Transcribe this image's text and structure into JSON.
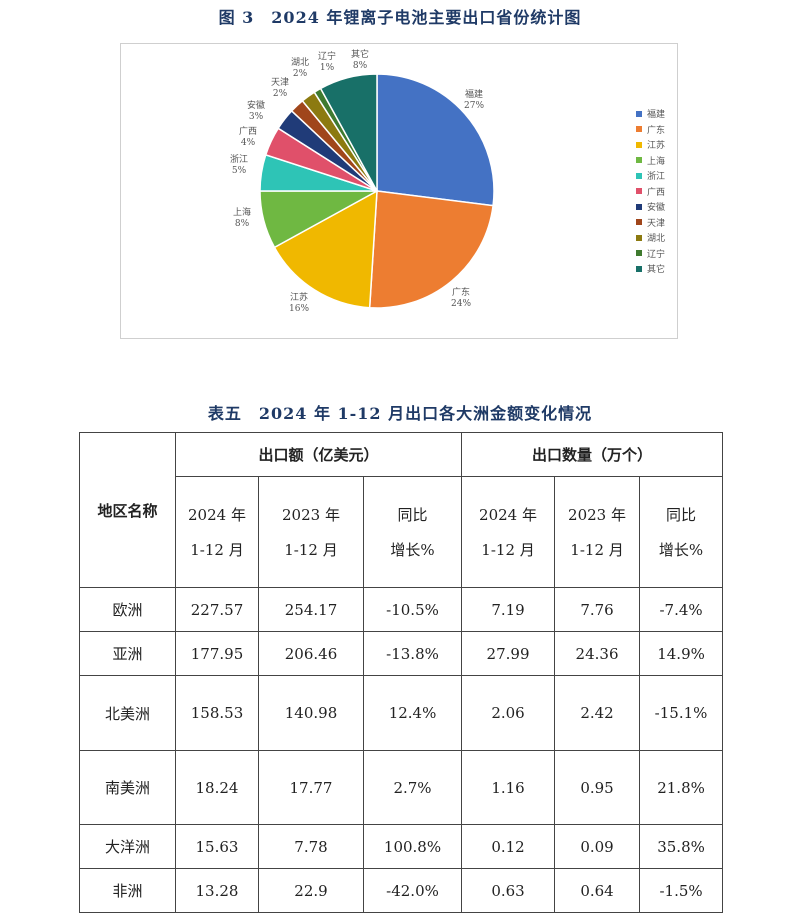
{
  "figure_title": "图 3　2024 年锂离子电池主要出口省份统计图",
  "table_title": "表五　2024 年 1-12 月出口各大洲金额变化情况",
  "chart_data": {
    "type": "pie",
    "title": "图 3　2024 年锂离子电池主要出口省份统计图",
    "legend_position": "right",
    "categories": [
      "福建",
      "广东",
      "江苏",
      "上海",
      "浙江",
      "广西",
      "安徽",
      "天津",
      "湖北",
      "辽宁",
      "其它"
    ],
    "values": [
      27,
      24,
      16,
      8,
      5,
      4,
      3,
      2,
      2,
      1,
      8
    ],
    "unit": "%",
    "colors": [
      "#4472c4",
      "#ed7d31",
      "#f0b800",
      "#6fb842",
      "#2ec4b6",
      "#e0506a",
      "#203b78",
      "#a0461b",
      "#8c7a10",
      "#3f7a2f",
      "#187068"
    ],
    "labels": [
      "27%",
      "24%",
      "16%",
      "8%",
      "5%",
      "4%",
      "3%",
      "2%",
      "2%",
      "1%",
      "8%"
    ]
  },
  "legend": [
    {
      "label": "福建",
      "color": "#4472c4"
    },
    {
      "label": "广东",
      "color": "#ed7d31"
    },
    {
      "label": "江苏",
      "color": "#f0b800"
    },
    {
      "label": "上海",
      "color": "#6fb842"
    },
    {
      "label": "浙江",
      "color": "#2ec4b6"
    },
    {
      "label": "广西",
      "color": "#e0506a"
    },
    {
      "label": "安徽",
      "color": "#203b78"
    },
    {
      "label": "天津",
      "color": "#a0461b"
    },
    {
      "label": "湖北",
      "color": "#8c7a10"
    },
    {
      "label": "辽宁",
      "color": "#3f7a2f"
    },
    {
      "label": "其它",
      "color": "#187068"
    }
  ],
  "pie_labels": [
    {
      "name": "福建",
      "pct": "27%"
    },
    {
      "name": "广东",
      "pct": "24%"
    },
    {
      "name": "江苏",
      "pct": "16%"
    },
    {
      "name": "上海",
      "pct": "8%"
    },
    {
      "name": "浙江",
      "pct": "5%"
    },
    {
      "name": "广西",
      "pct": "4%"
    },
    {
      "name": "安徽",
      "pct": "3%"
    },
    {
      "name": "天津",
      "pct": "2%"
    },
    {
      "name": "湖北",
      "pct": "2%"
    },
    {
      "name": "辽宁",
      "pct": "1%"
    },
    {
      "name": "其它",
      "pct": "8%"
    }
  ],
  "table": {
    "region_header": "地区名称",
    "group_value": "出口额（亿美元）",
    "group_qty": "出口数量（万个）",
    "col_2024": [
      "2024 年",
      "1-12 月"
    ],
    "col_2023": [
      "2023 年",
      "1-12 月"
    ],
    "col_yoy": [
      "同比",
      "增长%"
    ],
    "rows": [
      {
        "region": "欧洲",
        "v2024": "227.57",
        "v2023": "254.17",
        "vyoy": "-10.5%",
        "q2024": "7.19",
        "q2023": "7.76",
        "qyoy": "-7.4%"
      },
      {
        "region": "亚洲",
        "v2024": "177.95",
        "v2023": "206.46",
        "vyoy": "-13.8%",
        "q2024": "27.99",
        "q2023": "24.36",
        "qyoy": "14.9%"
      },
      {
        "region": "北美洲",
        "v2024": "158.53",
        "v2023": "140.98",
        "vyoy": "12.4%",
        "q2024": "2.06",
        "q2023": "2.42",
        "qyoy": "-15.1%"
      },
      {
        "region": "南美洲",
        "v2024": "18.24",
        "v2023": "17.77",
        "vyoy": "2.7%",
        "q2024": "1.16",
        "q2023": "0.95",
        "qyoy": "21.8%"
      },
      {
        "region": "大洋洲",
        "v2024": "15.63",
        "v2023": "7.78",
        "vyoy": "100.8%",
        "q2024": "0.12",
        "q2023": "0.09",
        "qyoy": "35.8%"
      },
      {
        "region": "非洲",
        "v2024": "13.28",
        "v2023": "22.9",
        "vyoy": "-42.0%",
        "q2024": "0.63",
        "q2023": "0.64",
        "qyoy": "-1.5%"
      }
    ]
  }
}
